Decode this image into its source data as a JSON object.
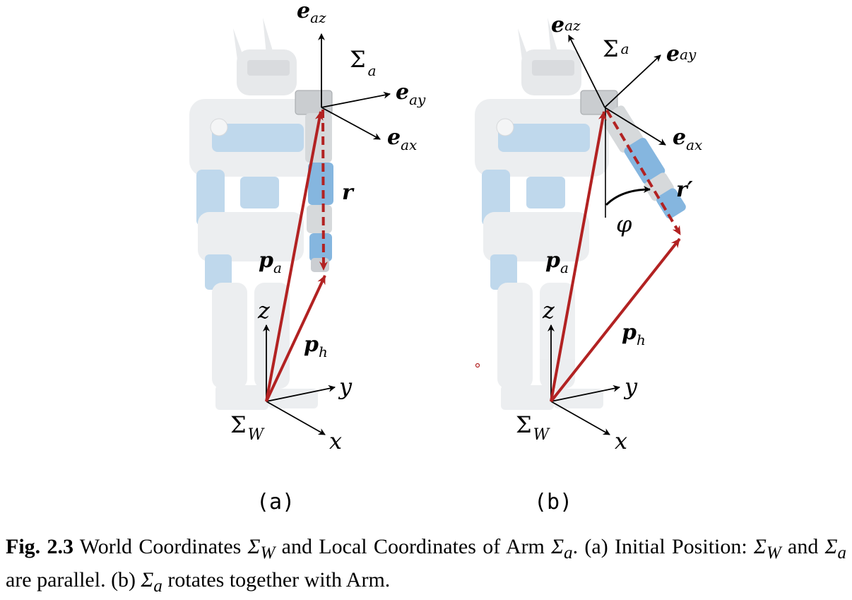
{
  "figure": {
    "panel_a": {
      "label": "(a)",
      "frame_arm": "Σ",
      "frame_arm_sub": "a",
      "axis_ez": "e",
      "axis_ez_sub": "az",
      "axis_ey": "e",
      "axis_ey_sub": "ay",
      "axis_ex": "e",
      "axis_ex_sub": "ax",
      "vec_r": "r",
      "vec_pa": "p",
      "vec_pa_sub": "a",
      "vec_ph": "p",
      "vec_ph_sub": "h",
      "axis_z": "z",
      "axis_y": "y",
      "axis_x": "x",
      "frame_world": "Σ",
      "frame_world_sub": "W"
    },
    "panel_b": {
      "label": "(b)",
      "frame_arm": "Σ",
      "frame_arm_sub": "a",
      "axis_ez": "e",
      "axis_ez_sub": "az",
      "axis_ey": "e",
      "axis_ey_sub": "ay",
      "axis_ex": "e",
      "axis_ex_sub": "ax",
      "vec_r": "r′",
      "angle": "φ",
      "vec_pa": "p",
      "vec_pa_sub": "a",
      "vec_ph": "p",
      "vec_ph_sub": "h",
      "axis_z": "z",
      "axis_y": "y",
      "axis_x": "x",
      "frame_world": "Σ",
      "frame_world_sub": "W"
    },
    "colors": {
      "vector_red": "#b22222",
      "robot_gray": "#e6e8ea",
      "robot_blue": "#7fb3de"
    }
  },
  "caption": {
    "fig_label": "Fig. 2.3",
    "text_1": " World Coordinates ",
    "sym_1": "Σ",
    "sym_1_sub": "W",
    "text_2": " and Local Coordinates of Arm ",
    "sym_2": "Σ",
    "sym_2_sub": "a",
    "text_3": ". (a) Initial Position: ",
    "sym_3": "Σ",
    "sym_3_sub": "W",
    "text_4": " and ",
    "sym_4": "Σ",
    "sym_4_sub": "a",
    "text_5": " are parallel. (b) ",
    "sym_5": "Σ",
    "sym_5_sub": "a",
    "text_6": " rotates together with Arm."
  }
}
